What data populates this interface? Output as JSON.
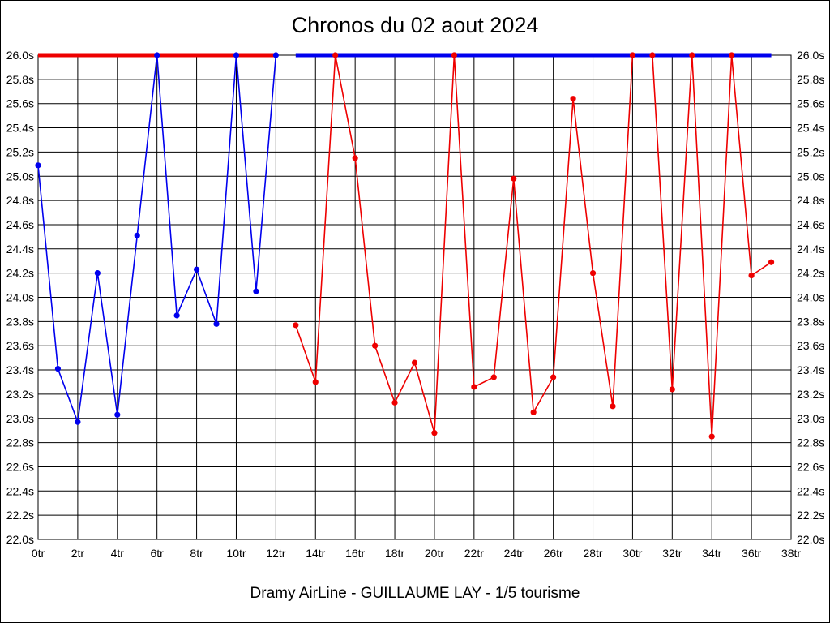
{
  "page": {
    "title": "Chronos du 02 aout 2024",
    "subtitle": "Dramy AirLine - GUILLAUME LAY - 1/5 tourisme"
  },
  "colors": {
    "series_blue": "#0000ee",
    "series_red": "#ee0000",
    "grid": "#000000",
    "text": "#000000",
    "background": "#ffffff"
  },
  "chart_data": {
    "type": "line",
    "title": "Chronos du 02 aout 2024",
    "subtitle": "Dramy AirLine - GUILLAUME LAY - 1/5 tourisme",
    "x_unit": "tr",
    "y_unit": "s",
    "xlim": [
      0,
      38
    ],
    "ylim": [
      22.0,
      26.0
    ],
    "grid": true,
    "legend": "none",
    "cap_value": 26.0,
    "x_tick_values": [
      0,
      2,
      4,
      6,
      8,
      10,
      12,
      14,
      16,
      18,
      20,
      22,
      24,
      26,
      28,
      30,
      32,
      34,
      36,
      38
    ],
    "x_tick_labels": [
      "0tr",
      "2tr",
      "4tr",
      "6tr",
      "8tr",
      "10tr",
      "12tr",
      "14tr",
      "16tr",
      "18tr",
      "20tr",
      "22tr",
      "24tr",
      "26tr",
      "28tr",
      "30tr",
      "32tr",
      "34tr",
      "36tr",
      "38tr"
    ],
    "y_tick_values": [
      26.0,
      25.8,
      25.6,
      25.4,
      25.2,
      25.0,
      24.8,
      24.6,
      24.4,
      24.2,
      24.0,
      23.8,
      23.6,
      23.4,
      23.2,
      23.0,
      22.8,
      22.6,
      22.4,
      22.2,
      22.0
    ],
    "y_tick_labels": [
      "26.0s",
      "25.8s",
      "25.6s",
      "25.4s",
      "25.2s",
      "25.0s",
      "24.8s",
      "24.6s",
      "24.4s",
      "24.2s",
      "24.0s",
      "23.8s",
      "23.6s",
      "23.4s",
      "23.2s",
      "23.0s",
      "22.8s",
      "22.6s",
      "22.4s",
      "22.2s",
      "22.0s"
    ],
    "series": [
      {
        "name": "stint-blue-laps-0-12",
        "color": "#0000ee",
        "x": [
          0,
          1,
          2,
          3,
          4,
          5,
          6,
          7,
          8,
          9,
          10,
          11,
          12
        ],
        "values": [
          25.09,
          23.41,
          22.97,
          24.2,
          23.03,
          24.51,
          26.0,
          23.85,
          24.23,
          23.78,
          26.0,
          24.05,
          26.0
        ]
      },
      {
        "name": "stint-red-laps-13-37",
        "color": "#ee0000",
        "x": [
          13,
          14,
          15,
          16,
          17,
          18,
          19,
          20,
          21,
          22,
          23,
          24,
          25,
          26,
          27,
          28,
          29,
          30,
          31,
          32,
          33,
          34,
          35,
          36,
          37
        ],
        "values": [
          23.77,
          23.3,
          26.0,
          25.15,
          23.6,
          23.13,
          23.46,
          22.88,
          26.0,
          23.26,
          23.34,
          24.98,
          23.05,
          23.34,
          25.64,
          24.2,
          23.1,
          26.0,
          26.0,
          23.24,
          26.0,
          22.85,
          26.0,
          24.18,
          24.29
        ]
      }
    ],
    "cap_lines": [
      {
        "name": "cap-line-red",
        "color": "#ee0000",
        "from_x": 0,
        "to_x": 12,
        "y": 26.0
      },
      {
        "name": "cap-line-blue",
        "color": "#0000ee",
        "from_x": 13,
        "to_x": 37,
        "y": 26.0
      }
    ]
  }
}
